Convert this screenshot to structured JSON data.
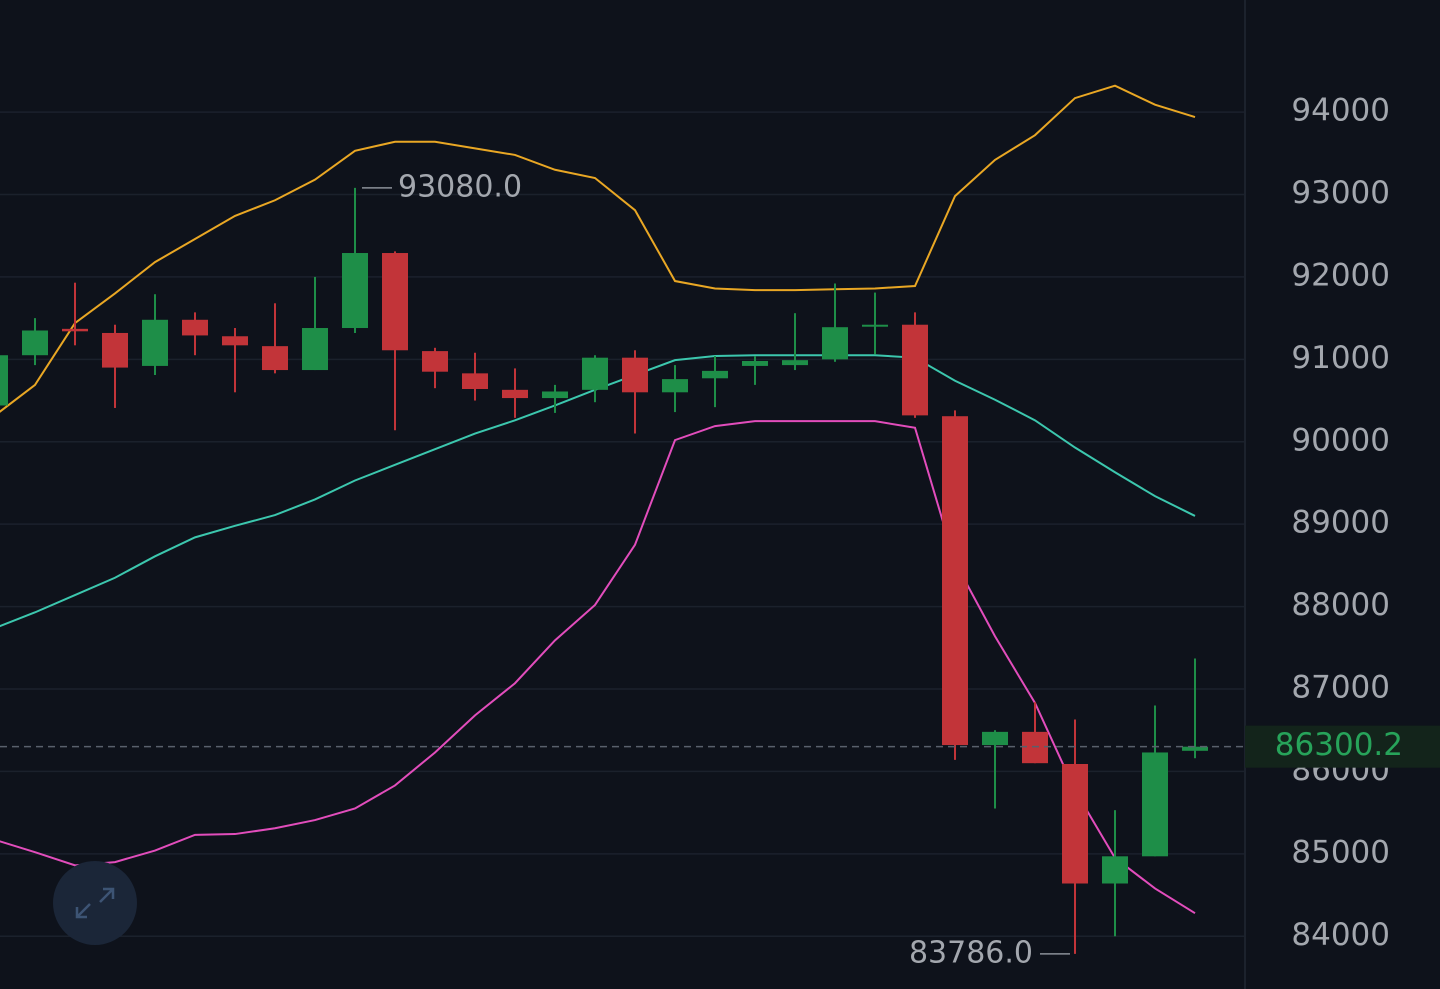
{
  "chart_data": {
    "type": "candlestick",
    "categories": [
      null,
      null,
      null,
      null,
      null,
      null,
      null,
      null,
      null,
      null,
      null,
      null,
      null,
      null,
      null,
      null,
      null,
      null,
      null,
      null,
      null,
      null,
      null,
      null,
      null,
      null,
      null,
      null,
      null,
      null,
      null
    ],
    "open": [
      90440,
      91050,
      91370,
      91320,
      90920,
      91480,
      91280,
      91160,
      90870,
      91380,
      92290,
      91100,
      90830,
      90630,
      90530,
      90630,
      91020,
      90600,
      90770,
      90920,
      90930,
      91000,
      91410,
      91420,
      90310,
      86320,
      86480,
      86090,
      84640,
      84970,
      86250
    ],
    "high": [
      91170,
      91500,
      91930,
      91420,
      91790,
      91570,
      91380,
      91680,
      92000,
      93080,
      92310,
      91140,
      91080,
      90890,
      90690,
      91050,
      91110,
      90930,
      91040,
      91040,
      91560,
      91920,
      91810,
      91570,
      90380,
      86500,
      86840,
      86630,
      85530,
      86800,
      87370
    ],
    "low": [
      90380,
      90930,
      91170,
      90410,
      90810,
      91050,
      90600,
      90830,
      90870,
      91320,
      90140,
      90650,
      90500,
      90290,
      90350,
      90480,
      90100,
      90360,
      90420,
      90690,
      90870,
      90970,
      91060,
      90290,
      86140,
      85550,
      86100,
      83786,
      84000,
      84970,
      86160
    ],
    "close": [
      91050,
      91350,
      91340,
      90900,
      91480,
      91290,
      91170,
      90870,
      91380,
      92290,
      91110,
      90850,
      90640,
      90530,
      90610,
      91020,
      90600,
      90760,
      90860,
      90980,
      90990,
      91390,
      91420,
      90320,
      86320,
      86480,
      86100,
      84640,
      84970,
      86230,
      86300.2
    ],
    "up_color": "#1e8e48",
    "down_color": "#c23439",
    "bands": {
      "upper": {
        "color": "#e9a724",
        "values": [
          90320,
          90690,
          91440,
          91800,
          92180,
          92460,
          92740,
          92930,
          93180,
          93530,
          93640,
          93640,
          93560,
          93480,
          93300,
          93200,
          92810,
          91950,
          91860,
          91840,
          91840,
          91850,
          91860,
          91890,
          92980,
          93420,
          93720,
          94170,
          94320,
          94090,
          93940
        ]
      },
      "middle": {
        "color": "#3cc7ae",
        "values": [
          87740,
          87930,
          88140,
          88350,
          88610,
          88840,
          88980,
          89110,
          89300,
          89530,
          89720,
          89910,
          90100,
          90260,
          90440,
          90630,
          90810,
          90990,
          91040,
          91050,
          91050,
          91050,
          91050,
          91020,
          90740,
          90510,
          90260,
          89930,
          89630,
          89340,
          89100
        ]
      },
      "lower": {
        "color": "#e24dbc",
        "values": [
          85170,
          85020,
          84860,
          84900,
          85040,
          85230,
          85240,
          85310,
          85410,
          85550,
          85830,
          86230,
          86680,
          87070,
          87590,
          88020,
          88750,
          90020,
          90190,
          90250,
          90250,
          90250,
          90250,
          90170,
          88540,
          87640,
          86830,
          85770,
          84950,
          84580,
          84280
        ]
      }
    },
    "ylim": [
      83360,
      95360
    ],
    "yticks": [
      84000,
      85000,
      86000,
      87000,
      88000,
      89000,
      90000,
      91000,
      92000,
      93000,
      94000
    ],
    "grid": true,
    "max_label": {
      "value": 93080,
      "label": "93080.0"
    },
    "min_label": {
      "value": 83786,
      "label": "83786.0"
    },
    "last_price": 86300.2,
    "last_price_color": "#27a35a"
  }
}
